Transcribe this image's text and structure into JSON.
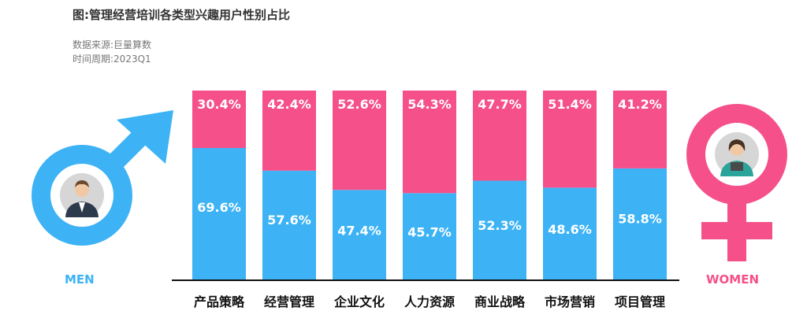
{
  "header": {
    "title": "图:管理经营培训各类型兴趣用户性别占比",
    "source": "数据来源:巨量算数",
    "period": "时间周期:2023Q1"
  },
  "symbols": {
    "men_label": "MEN",
    "women_label": "WOMEN",
    "men_icon": "male-symbol-icon",
    "women_icon": "female-symbol-icon"
  },
  "colors": {
    "male": "#3db3f5",
    "female": "#f5508a"
  },
  "chart_data": {
    "type": "bar",
    "stacked": true,
    "categories": [
      "产品策略",
      "经营管理",
      "企业文化",
      "人力资源",
      "商业战略",
      "市场营销",
      "项目管理"
    ],
    "series": [
      {
        "key": "male",
        "values": [
          69.6,
          57.6,
          47.4,
          45.7,
          52.3,
          48.6,
          58.8
        ],
        "labels": [
          "69.6%",
          "57.6%",
          "47.4%",
          "45.7%",
          "52.3%",
          "48.6%",
          "58.8%"
        ]
      },
      {
        "key": "female",
        "values": [
          30.4,
          42.4,
          52.6,
          54.3,
          47.7,
          51.4,
          41.2
        ],
        "labels": [
          "30.4%",
          "42.4%",
          "52.6%",
          "54.3%",
          "47.7%",
          "51.4%",
          "41.2%"
        ]
      }
    ],
    "ylim": [
      0,
      100
    ],
    "unit": "%",
    "grid": false,
    "legend": "none"
  }
}
